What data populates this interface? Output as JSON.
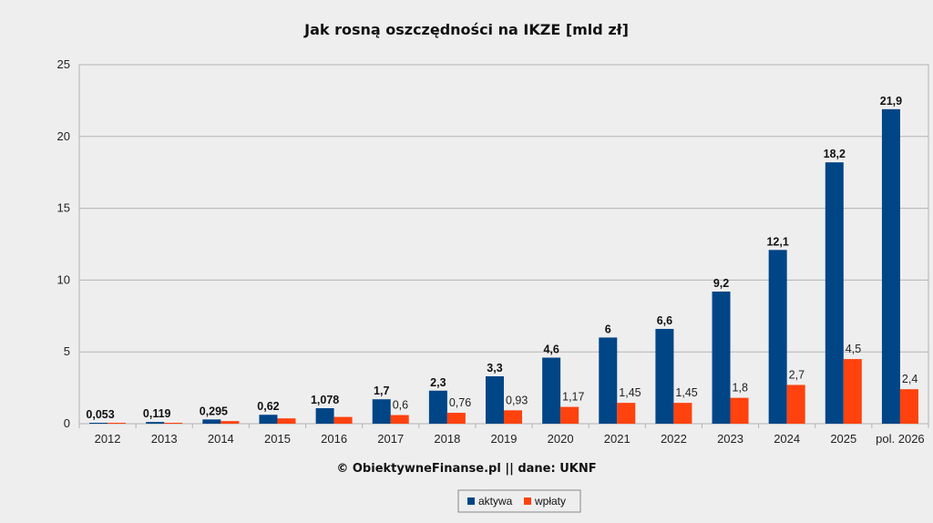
{
  "chart_data": {
    "type": "bar",
    "title": "Jak rosną oszczędności na IKZE [mld zł]",
    "source": "© ObiektywneFinanse.pl || dane: UKNF",
    "categories": [
      "2012",
      "2013",
      "2014",
      "2015",
      "2016",
      "2017",
      "2018",
      "2019",
      "2020",
      "2021",
      "2022",
      "2023",
      "2024",
      "2025",
      "pol. 2026"
    ],
    "series": [
      {
        "name": "aktywa",
        "color": "#004586",
        "values": [
          0.053,
          0.119,
          0.295,
          0.62,
          1.078,
          1.7,
          2.3,
          3.3,
          4.6,
          6,
          6.6,
          9.2,
          12.1,
          18.2,
          21.9
        ],
        "labels": [
          "0,053",
          "0,119",
          "0,295",
          "0,62",
          "1,078",
          "1,7",
          "2,3",
          "3,3",
          "4,6",
          "6",
          "6,6",
          "9,2",
          "12,1",
          "18,2",
          "21,9"
        ]
      },
      {
        "name": "wpłaty",
        "color": "#ff420e",
        "values": [
          0.02,
          0.04,
          0.18,
          0.37,
          0.47,
          0.6,
          0.76,
          0.93,
          1.17,
          1.45,
          1.45,
          1.8,
          2.7,
          4.5,
          2.4
        ],
        "labels": [
          "",
          "",
          "",
          "",
          "",
          "0,6",
          "0,76",
          "0,93",
          "1,17",
          "1,45",
          "1,45",
          "1,8",
          "2,7",
          "4,5",
          "2,4"
        ]
      }
    ],
    "y_ticks": [
      "0",
      "5",
      "10",
      "15",
      "20",
      "25"
    ],
    "ylim": [
      0,
      25
    ],
    "grid": true,
    "legend_position": "bottom-center"
  }
}
